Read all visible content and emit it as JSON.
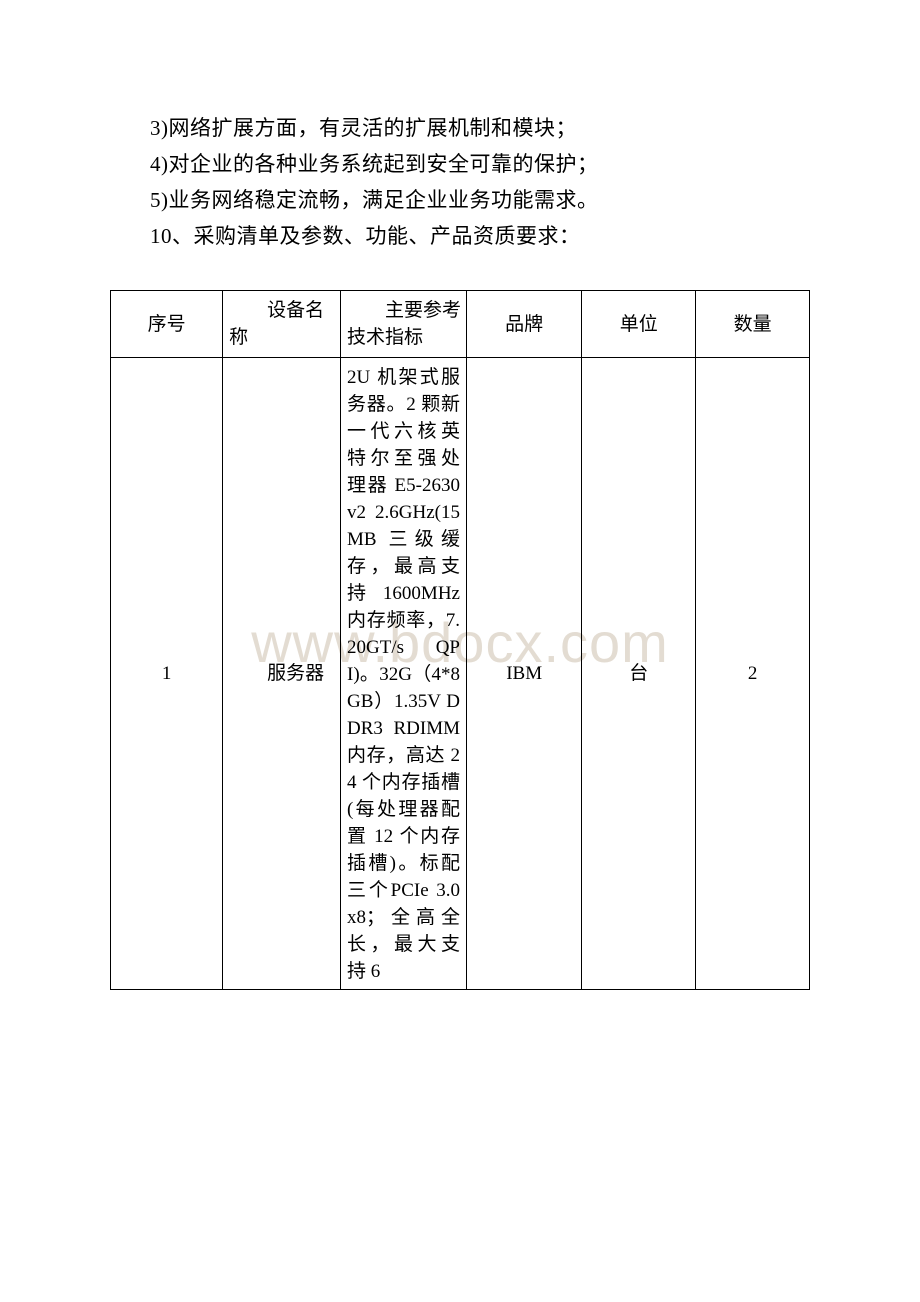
{
  "paragraphs": {
    "line1": "3)网络扩展方面，有灵活的扩展机制和模块；",
    "line2": "4)对企业的各种业务系统起到安全可靠的保护；",
    "line3": "5)业务网络稳定流畅，满足企业业务功能需求。",
    "line4": "10、采购清单及参数、功能、产品资质要求："
  },
  "watermark": "www.bdocx.com",
  "table": {
    "headers": {
      "seq": "序号",
      "name": "设备名称",
      "spec": "主要参考技术指标",
      "brand": "品牌",
      "unit": "单位",
      "qty": "数量"
    },
    "row1": {
      "seq": "1",
      "name": "服务器",
      "spec_indent": "2U 机",
      "spec_rest": "架式服务器。2 颗新一代六核英特尔至强处理器 E5-2630v2 2.6GHz(15MB 三级缓存，最高支持1600MHz内存频率，7.20GT/s QPI)。32G（4*8GB）1.35V DDR3 RDIMM内存，高达 24 个内存插槽(每处理器配置 12 个内存插槽)。标配三个PCIe 3.0 x8；全高全长，最大支持 6",
      "brand": "IBM",
      "unit": "台",
      "qty": "2"
    }
  },
  "colors": {
    "background": "#ffffff",
    "text": "#000000",
    "border": "#000000",
    "watermark": "rgba(200, 185, 165, 0.5)"
  },
  "typography": {
    "body_fontsize": 21,
    "table_fontsize": 19,
    "watermark_fontsize": 56,
    "line_height_body": 36,
    "line_height_table": 27
  }
}
